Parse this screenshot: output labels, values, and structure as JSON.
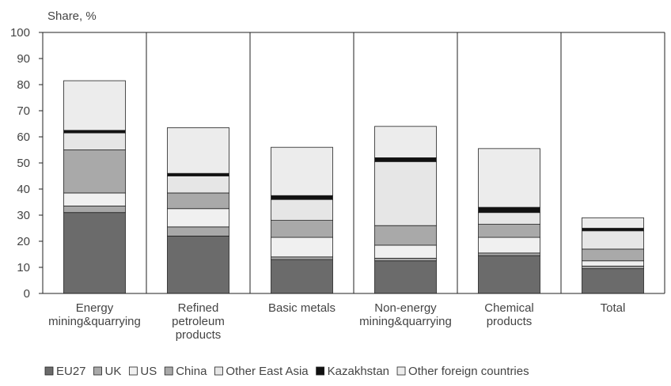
{
  "chart_data": {
    "type": "bar",
    "stacked": true,
    "ylabel": "Share, %",
    "ylim": [
      0,
      100
    ],
    "yticks": [
      0,
      10,
      20,
      30,
      40,
      50,
      60,
      70,
      80,
      90,
      100
    ],
    "grid": "vertical separators between categories",
    "legend_position": "bottom",
    "categories": [
      [
        "Energy",
        "mining&quarrying"
      ],
      [
        "Refined",
        "petroleum",
        "products"
      ],
      [
        "Basic metals"
      ],
      [
        "Non-energy",
        "mining&quarrying"
      ],
      [
        "Chemical",
        "products"
      ],
      [
        "Total"
      ]
    ],
    "series": [
      {
        "name": "EU27",
        "color": "#6b6b6b",
        "values": [
          31,
          22,
          13,
          12.5,
          14.5,
          9.5
        ]
      },
      {
        "name": "UK",
        "color": "#a9a9a9",
        "values": [
          2.5,
          3.5,
          1,
          1,
          1,
          1
        ]
      },
      {
        "name": "US",
        "color": "#f0f0f0",
        "values": [
          5,
          7,
          7.5,
          5,
          6,
          2
        ]
      },
      {
        "name": "China",
        "color": "#a9a9a9",
        "values": [
          16.5,
          6,
          6.5,
          7.5,
          5,
          4.5
        ]
      },
      {
        "name": "Other East Asia",
        "color": "#e6e6e6",
        "values": [
          6.5,
          6.5,
          8,
          24.5,
          4.5,
          7
        ]
      },
      {
        "name": "Kazakhstan",
        "color": "#111111",
        "values": [
          1,
          1,
          1.5,
          1.5,
          2,
          1
        ]
      },
      {
        "name": "Other foreign countries",
        "color": "#ececec",
        "values": [
          19,
          17.5,
          18.5,
          12,
          22.5,
          4
        ]
      }
    ]
  }
}
